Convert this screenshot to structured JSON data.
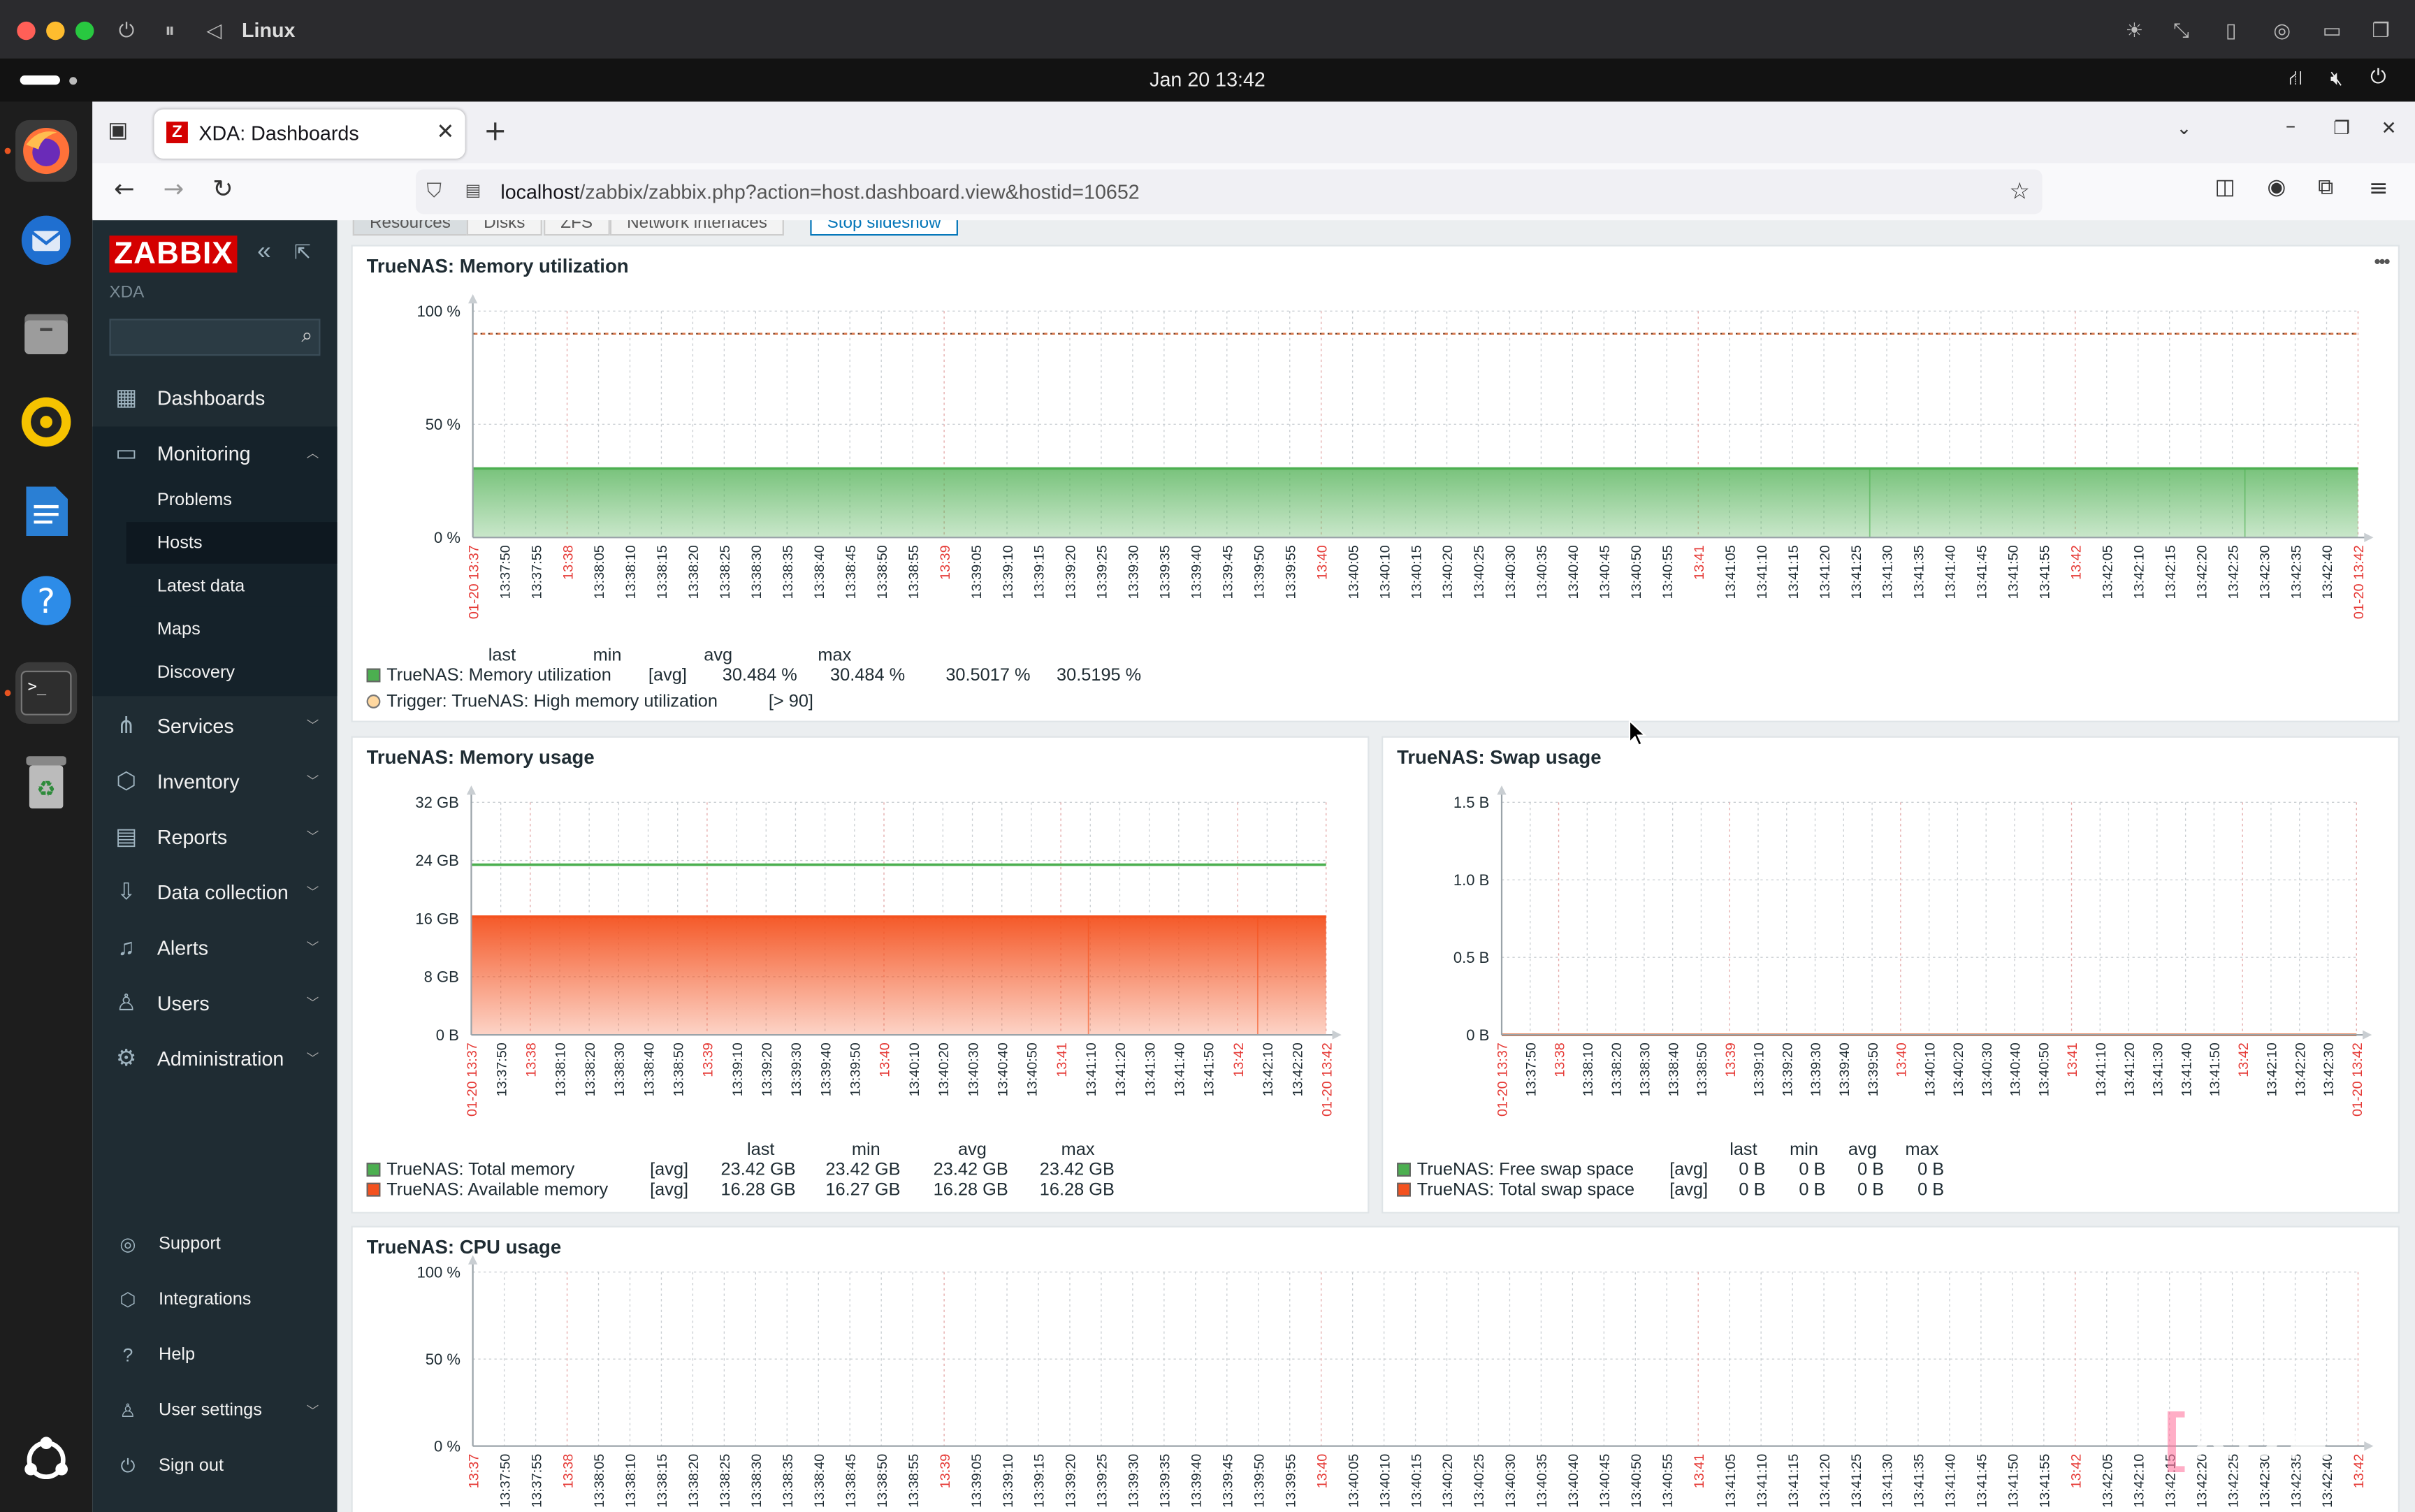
{
  "os": {
    "title": "Linux",
    "clock": "Jan 20  13:42"
  },
  "browser": {
    "tab_title": "XDA: Dashboards",
    "tab_favicon": "Z",
    "url_host": "localhost",
    "url_path": "/zabbix/zabbix.php?action=host.dashboard.view&hostid=10652"
  },
  "sidebar": {
    "logo": "ZABBIX",
    "server_name": "XDA",
    "search_placeholder": "",
    "menu": [
      {
        "label": "Dashboards",
        "icon": "dashboards-icon"
      },
      {
        "label": "Monitoring",
        "icon": "monitoring-icon"
      },
      {
        "label": "Services",
        "icon": "services-icon"
      },
      {
        "label": "Inventory",
        "icon": "inventory-icon"
      },
      {
        "label": "Reports",
        "icon": "reports-icon"
      },
      {
        "label": "Data collection",
        "icon": "data-collection-icon"
      },
      {
        "label": "Alerts",
        "icon": "alerts-icon"
      },
      {
        "label": "Users",
        "icon": "users-icon"
      },
      {
        "label": "Administration",
        "icon": "administration-icon"
      }
    ],
    "monitoring_sub": [
      "Problems",
      "Hosts",
      "Latest data",
      "Maps",
      "Discovery"
    ],
    "bottom": [
      {
        "label": "Support",
        "icon": "support-icon"
      },
      {
        "label": "Integrations",
        "icon": "integrations-icon"
      },
      {
        "label": "Help",
        "icon": "help-icon"
      },
      {
        "label": "User settings",
        "icon": "user-settings-icon"
      },
      {
        "label": "Sign out",
        "icon": "sign-out-icon"
      }
    ]
  },
  "dashboard": {
    "tabs": [
      "Resources",
      "Disks",
      "ZFS",
      "Network interfaces"
    ],
    "slideshow_button": "Stop slideshow",
    "widget_menu": "•••",
    "legend_headers": [
      "last",
      "min",
      "avg",
      "max"
    ]
  },
  "colors": {
    "green": "#4caf50",
    "red_orange": "#f4511e",
    "red_tick": "#e53935",
    "sidebar_bg": "#1f2c33"
  },
  "time_axis": {
    "ticks_5s": [
      "01-20 13:37",
      "13:37:50",
      "13:37:55",
      "13:38",
      "13:38:05",
      "13:38:10",
      "13:38:15",
      "13:38:20",
      "13:38:25",
      "13:38:30",
      "13:38:35",
      "13:38:40",
      "13:38:45",
      "13:38:50",
      "13:38:55",
      "13:39",
      "13:39:05",
      "13:39:10",
      "13:39:15",
      "13:39:20",
      "13:39:25",
      "13:39:30",
      "13:39:35",
      "13:39:40",
      "13:39:45",
      "13:39:50",
      "13:39:55",
      "13:40",
      "13:40:05",
      "13:40:10",
      "13:40:15",
      "13:40:20",
      "13:40:25",
      "13:40:30",
      "13:40:35",
      "13:40:40",
      "13:40:45",
      "13:40:50",
      "13:40:55",
      "13:41",
      "13:41:05",
      "13:41:10",
      "13:41:15",
      "13:41:20",
      "13:41:25",
      "13:41:30",
      "13:41:35",
      "13:41:40",
      "13:41:45",
      "13:41:50",
      "13:41:55",
      "13:42",
      "13:42:05",
      "13:42:10",
      "13:42:15",
      "13:42:20",
      "13:42:25",
      "13:42:30",
      "13:42:35",
      "13:42:40",
      "01-20 13:42"
    ],
    "ticks_10s": [
      "01-20 13:37",
      "13:37:50",
      "13:38",
      "13:38:10",
      "13:38:20",
      "13:38:30",
      "13:38:40",
      "13:38:50",
      "13:39",
      "13:39:10",
      "13:39:20",
      "13:39:30",
      "13:39:40",
      "13:39:50",
      "13:40",
      "13:40:10",
      "13:40:20",
      "13:40:30",
      "13:40:40",
      "13:40:50",
      "13:41",
      "13:41:10",
      "13:41:20",
      "13:41:30",
      "13:41:40",
      "13:41:50",
      "13:42",
      "13:42:10",
      "13:42:20",
      "01-20 13:42"
    ],
    "ticks_10s_swap": [
      "01-20 13:37",
      "13:37:50",
      "13:38",
      "13:38:10",
      "13:38:20",
      "13:38:30",
      "13:38:40",
      "13:38:50",
      "13:39",
      "13:39:10",
      "13:39:20",
      "13:39:30",
      "13:39:40",
      "13:39:50",
      "13:40",
      "13:40:10",
      "13:40:20",
      "13:40:30",
      "13:40:40",
      "13:40:50",
      "13:41",
      "13:41:10",
      "13:41:20",
      "13:41:30",
      "13:41:40",
      "13:41:50",
      "13:42",
      "13:42:10",
      "13:42:20",
      "13:42:30",
      "01-20 13:42"
    ],
    "ticks_cpu": [
      "13:37",
      "13:37:50",
      "13:37:55",
      "13:38",
      "13:38:05",
      "13:38:10",
      "13:38:15",
      "13:38:20",
      "13:38:25",
      "13:38:30",
      "13:38:35",
      "13:38:40",
      "13:38:45",
      "13:38:50",
      "13:38:55",
      "13:39",
      "13:39:05",
      "13:39:10",
      "13:39:15",
      "13:39:20",
      "13:39:25",
      "13:39:30",
      "13:39:35",
      "13:39:40",
      "13:39:45",
      "13:39:50",
      "13:39:55",
      "13:40",
      "13:40:05",
      "13:40:10",
      "13:40:15",
      "13:40:20",
      "13:40:25",
      "13:40:30",
      "13:40:35",
      "13:40:40",
      "13:40:45",
      "13:40:50",
      "13:40:55",
      "13:41",
      "13:41:05",
      "13:41:10",
      "13:41:15",
      "13:41:20",
      "13:41:25",
      "13:41:30",
      "13:41:35",
      "13:41:40",
      "13:41:45",
      "13:41:50",
      "13:41:55",
      "13:42",
      "13:42:05",
      "13:42:10",
      "13:42:15",
      "13:42:20",
      "13:42:25",
      "13:42:30",
      "13:42:35",
      "13:42:40",
      "13:42"
    ]
  },
  "chart_data": [
    {
      "type": "area",
      "title": "TrueNAS: Memory utilization",
      "y_ticks": [
        "100 %",
        "50 %",
        "0 %"
      ],
      "ylim": [
        0,
        100
      ],
      "series": [
        {
          "name": "TrueNAS: Memory utilization",
          "func": "[avg]",
          "value": 30.484,
          "last": "30.484 %",
          "min": "30.484 %",
          "avg": "30.5017 %",
          "max": "30.5195 %",
          "color": "#4caf50"
        }
      ],
      "trigger": {
        "label": "Trigger: TrueNAS: High memory utilization",
        "cond": "[> 90]",
        "threshold": 90
      }
    },
    {
      "type": "area",
      "title": "TrueNAS: Memory usage",
      "y_ticks": [
        "32 GB",
        "24 GB",
        "16 GB",
        "8 GB",
        "0 B"
      ],
      "ylim": [
        0,
        32
      ],
      "series": [
        {
          "name": "TrueNAS: Total memory",
          "func": "[avg]",
          "value": 23.42,
          "last": "23.42 GB",
          "min": "23.42 GB",
          "avg": "23.42 GB",
          "max": "23.42 GB",
          "color": "#4caf50"
        },
        {
          "name": "TrueNAS: Available memory",
          "func": "[avg]",
          "value": 16.28,
          "last": "16.28 GB",
          "min": "16.27 GB",
          "avg": "16.28 GB",
          "max": "16.28 GB",
          "color": "#f4511e"
        }
      ]
    },
    {
      "type": "line",
      "title": "TrueNAS: Swap usage",
      "y_ticks": [
        "1.5 B",
        "1.0 B",
        "0.5 B",
        "0 B"
      ],
      "ylim": [
        0,
        1.5
      ],
      "series": [
        {
          "name": "TrueNAS: Free swap space",
          "func": "[avg]",
          "value": 0,
          "last": "0 B",
          "min": "0 B",
          "avg": "0 B",
          "max": "0 B",
          "color": "#4caf50"
        },
        {
          "name": "TrueNAS: Total swap space",
          "func": "[avg]",
          "value": 0,
          "last": "0 B",
          "min": "0 B",
          "avg": "0 B",
          "max": "0 B",
          "color": "#f4511e"
        }
      ]
    },
    {
      "type": "line",
      "title": "TrueNAS: CPU usage",
      "y_ticks": [
        "100 %",
        "50 %",
        "0 %"
      ],
      "ylim": [
        0,
        100
      ],
      "series": []
    }
  ]
}
